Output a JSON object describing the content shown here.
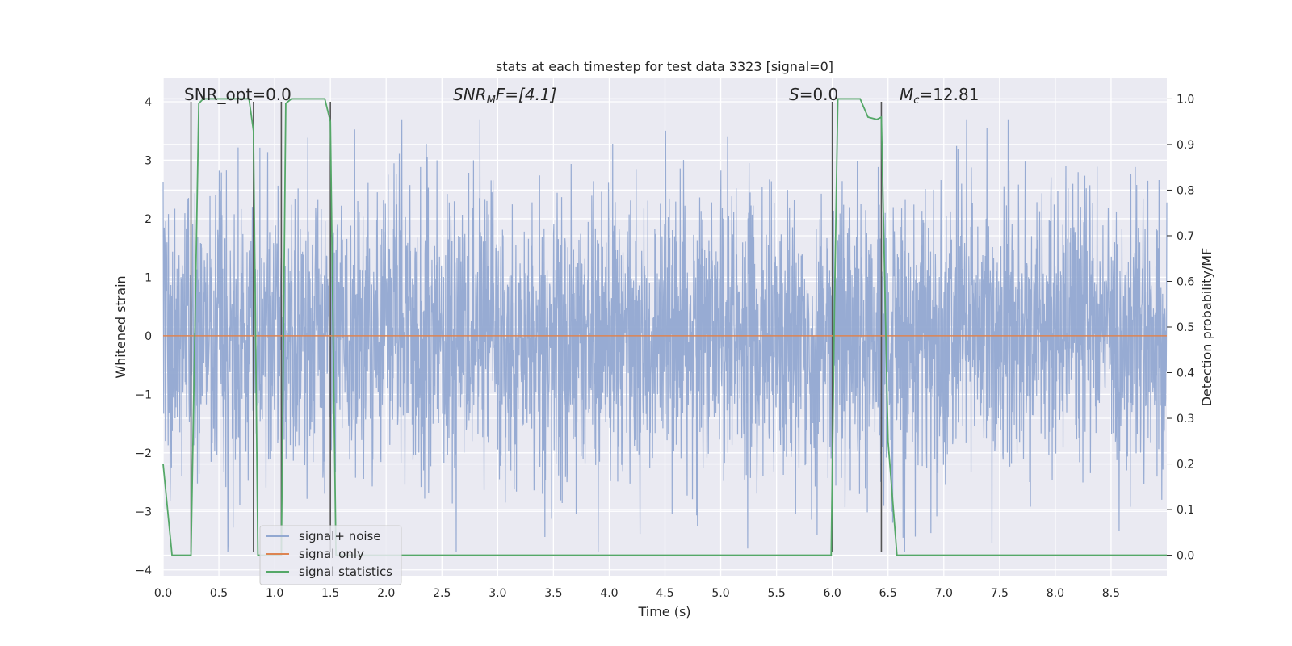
{
  "chart_data": {
    "type": "line",
    "title": "stats at each timestep for test data 3323 [signal=0]",
    "xlabel": "Time (s)",
    "ylabel": "Whitened strain",
    "y2label": "Detection probability/MF",
    "xlim": [
      0,
      9.0
    ],
    "ylim": [
      -4.1,
      4.4
    ],
    "y2lim": [
      -0.045,
      1.045
    ],
    "x_ticks": [
      "0.0",
      "0.5",
      "1.0",
      "1.5",
      "2.0",
      "2.5",
      "3.0",
      "3.5",
      "4.0",
      "4.5",
      "5.0",
      "5.5",
      "6.0",
      "6.5",
      "7.0",
      "7.5",
      "8.0",
      "8.5"
    ],
    "y_ticks": [
      "4",
      "3",
      "2",
      "1",
      "0",
      "−1",
      "−2",
      "−3",
      "−4"
    ],
    "y2_ticks": [
      "1.0",
      "0.9",
      "0.8",
      "0.7",
      "0.6",
      "0.5",
      "0.4",
      "0.3",
      "0.2",
      "0.1",
      "0.0"
    ],
    "grid": true,
    "legend_position": "lower-left",
    "annotations": [
      {
        "label": "SNR_opt=0.0",
        "x": 0.2,
        "y": 4.0
      },
      {
        "label": "SNR",
        "sub": "M",
        "suffix": "F=[4.1]",
        "x": 2.6,
        "y": 4.0
      },
      {
        "label": "S",
        "sub": "",
        "suffix": "=0.0",
        "x": 5.6,
        "y": 4.0
      },
      {
        "label": "M",
        "sub": "c",
        "suffix": "=12.81",
        "x": 6.6,
        "y": 4.0
      }
    ],
    "series": [
      {
        "name": "signal+ noise",
        "color": "#92a8d1",
        "kind": "noise",
        "amplitude_range": [
          -3.7,
          3.7
        ]
      },
      {
        "name": "signal only",
        "color": "#dd8452",
        "x": [
          0,
          9.0
        ],
        "y": [
          0,
          0
        ]
      },
      {
        "name": "signal statistics",
        "color": "#55a868",
        "axis": "right",
        "x": [
          0.0,
          0.08,
          0.25,
          0.32,
          0.36,
          0.7,
          0.77,
          0.81,
          0.85,
          1.06,
          1.1,
          1.15,
          1.45,
          1.5,
          1.55,
          5.99,
          6.02,
          6.05,
          6.25,
          6.32,
          6.4,
          6.44,
          6.5,
          6.58,
          9.0
        ],
        "y": [
          0.2,
          0.0,
          0.0,
          0.99,
          1.0,
          1.0,
          1.0,
          0.93,
          0.0,
          0.0,
          0.99,
          1.0,
          1.0,
          0.95,
          0.0,
          0.0,
          0.55,
          1.0,
          1.0,
          0.96,
          0.955,
          0.96,
          0.25,
          0.0,
          0.0
        ]
      },
      {
        "name": "",
        "kind": "vlines",
        "color": "#555555",
        "x": [
          0.25,
          0.81,
          1.06,
          1.5,
          6.0,
          6.44
        ],
        "y_range": [
          -3.7,
          4.0
        ]
      }
    ]
  }
}
